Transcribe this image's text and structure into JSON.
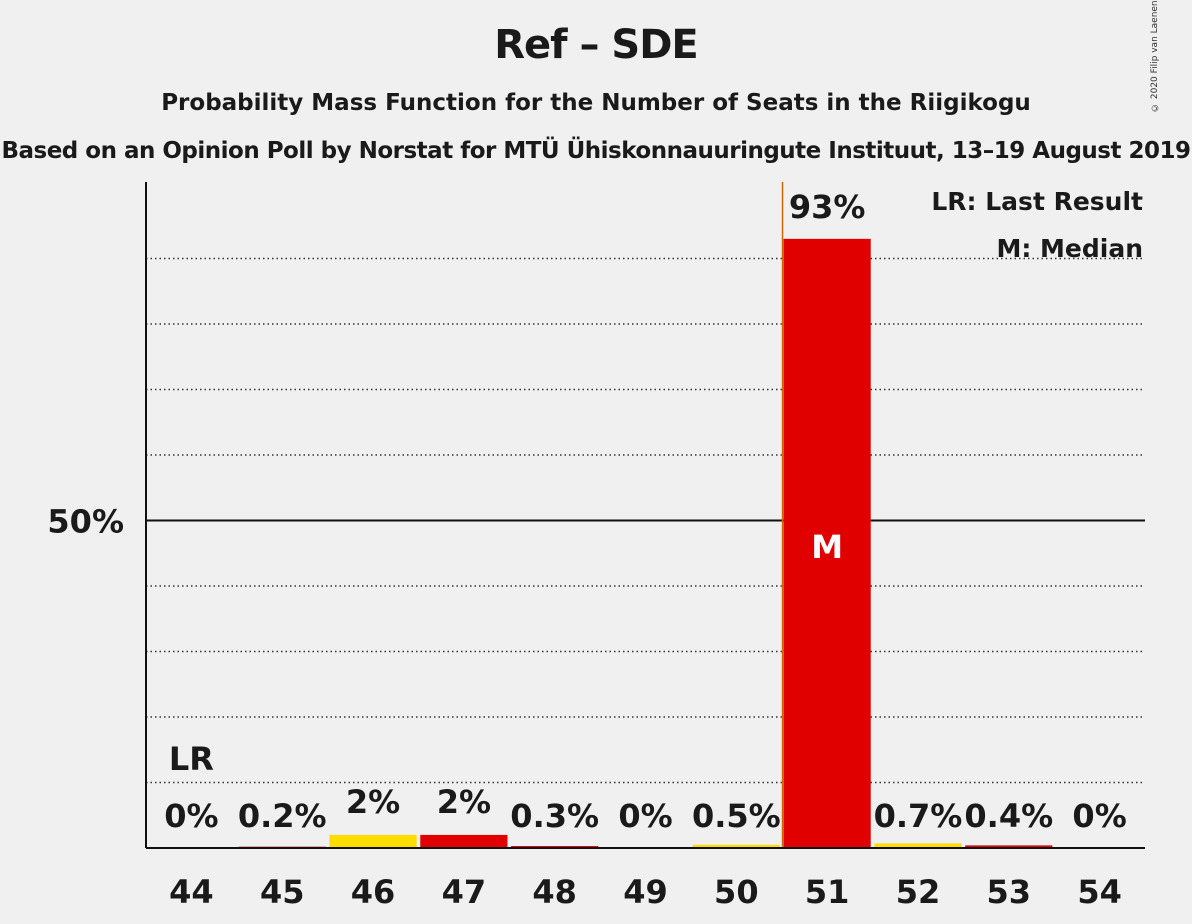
{
  "chart_data": {
    "type": "bar",
    "title": "Ref – SDE",
    "subtitle": "Probability Mass Function for the Number of Seats in the Riigikogu",
    "subtitle2": "Based on an Opinion Poll by Norstat for MTÜ Ühiskonnauuringute Instituut, 13–19 August 2019",
    "copyright": "© 2020 Filip van Laenen",
    "categories": [
      "44",
      "45",
      "46",
      "47",
      "48",
      "49",
      "50",
      "51",
      "52",
      "53",
      "54"
    ],
    "values": [
      0,
      0.2,
      2,
      2,
      0.3,
      0,
      0.5,
      93,
      0.7,
      0.4,
      0
    ],
    "value_labels": [
      "0%",
      "0.2%",
      "2%",
      "2%",
      "0.3%",
      "0%",
      "0.5%",
      "93%",
      "0.7%",
      "0.4%",
      "0%"
    ],
    "bar_colors": [
      "#e00000",
      "#e00000",
      "#ffdd00",
      "#e00000",
      "#e00000",
      "#e00000",
      "#ffdd00",
      "#e00000",
      "#ffdd00",
      "#e00000",
      "#e00000"
    ],
    "ylim": [
      0,
      100
    ],
    "yticks": [
      {
        "value": 50,
        "label": "50%"
      }
    ],
    "gridlines_every": 10,
    "last_result": {
      "category": "44",
      "label": "LR"
    },
    "median": {
      "category": "51",
      "label": "M"
    },
    "legend": {
      "position": "top-right",
      "items": [
        "LR: Last Result",
        "M: Median"
      ]
    },
    "colors": {
      "red": "#e00000",
      "yellow": "#ffdd00",
      "median_line": "#cc6600"
    }
  }
}
